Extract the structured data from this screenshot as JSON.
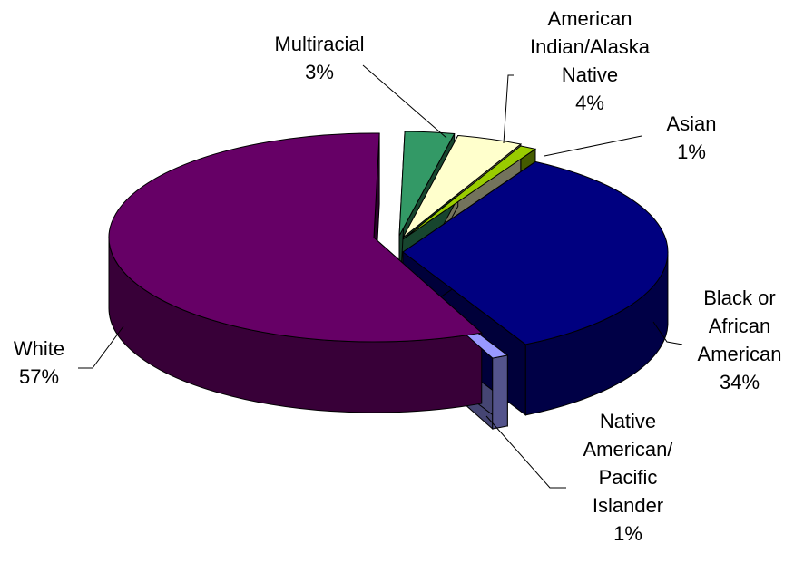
{
  "chart_data": {
    "type": "pie",
    "title": "",
    "legend": "none",
    "slices": [
      {
        "label": "Black or African American",
        "label_lines": [
          "Black or",
          "African",
          "American"
        ],
        "value": 34,
        "value_label": "34%",
        "color": "#000080"
      },
      {
        "label": "Native American/Pacific Islander",
        "label_lines": [
          "Native",
          "American/",
          "Pacific",
          "Islander"
        ],
        "value": 1,
        "value_label": "1%",
        "color": "#9999ff"
      },
      {
        "label": "White",
        "label_lines": [
          "White"
        ],
        "value": 57,
        "value_label": "57%",
        "color": "#660066"
      },
      {
        "label": "Multiracial",
        "label_lines": [
          "Multiracial"
        ],
        "value": 3,
        "value_label": "3%",
        "color": "#339966"
      },
      {
        "label": "American Indian/Alaska Native",
        "label_lines": [
          "American",
          "Indian/Alaska",
          "Native"
        ],
        "value": 4,
        "value_label": "4%",
        "color": "#ffffcc"
      },
      {
        "label": "Asian",
        "label_lines": [
          "Asian"
        ],
        "value": 1,
        "value_label": "1%",
        "color": "#99cc00"
      }
    ]
  }
}
